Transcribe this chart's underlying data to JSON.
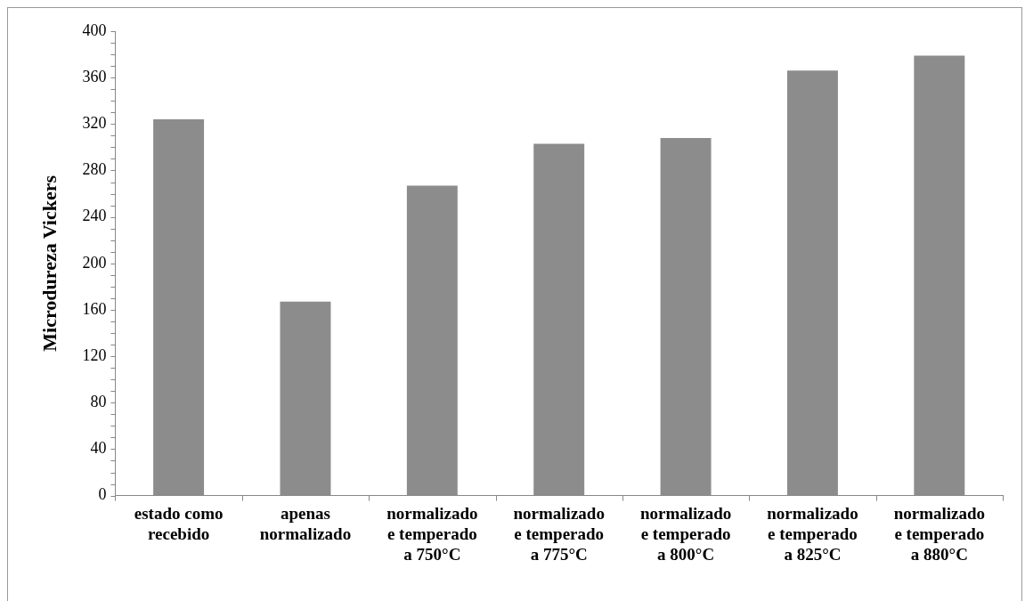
{
  "chart_data": {
    "type": "bar",
    "ylabel": "Microdureza Vickers",
    "categories": [
      [
        "estado como",
        "recebido"
      ],
      [
        "apenas",
        "normalizado"
      ],
      [
        "normalizado",
        "e temperado",
        "a 750°C"
      ],
      [
        "normalizado",
        "e temperado",
        "a 775°C"
      ],
      [
        "normalizado",
        "e temperado",
        "a 800°C"
      ],
      [
        "normalizado",
        "e temperado",
        "a 825°C"
      ],
      [
        "normalizado",
        "e temperado",
        "a 880°C"
      ]
    ],
    "values": [
      324,
      167,
      267,
      303,
      308,
      366,
      379
    ],
    "color": "#8c8c8c",
    "ylim": [
      0,
      400
    ],
    "yticks": [
      0,
      40,
      80,
      120,
      160,
      200,
      240,
      280,
      320,
      360,
      400
    ],
    "grid": false,
    "legend": false
  }
}
